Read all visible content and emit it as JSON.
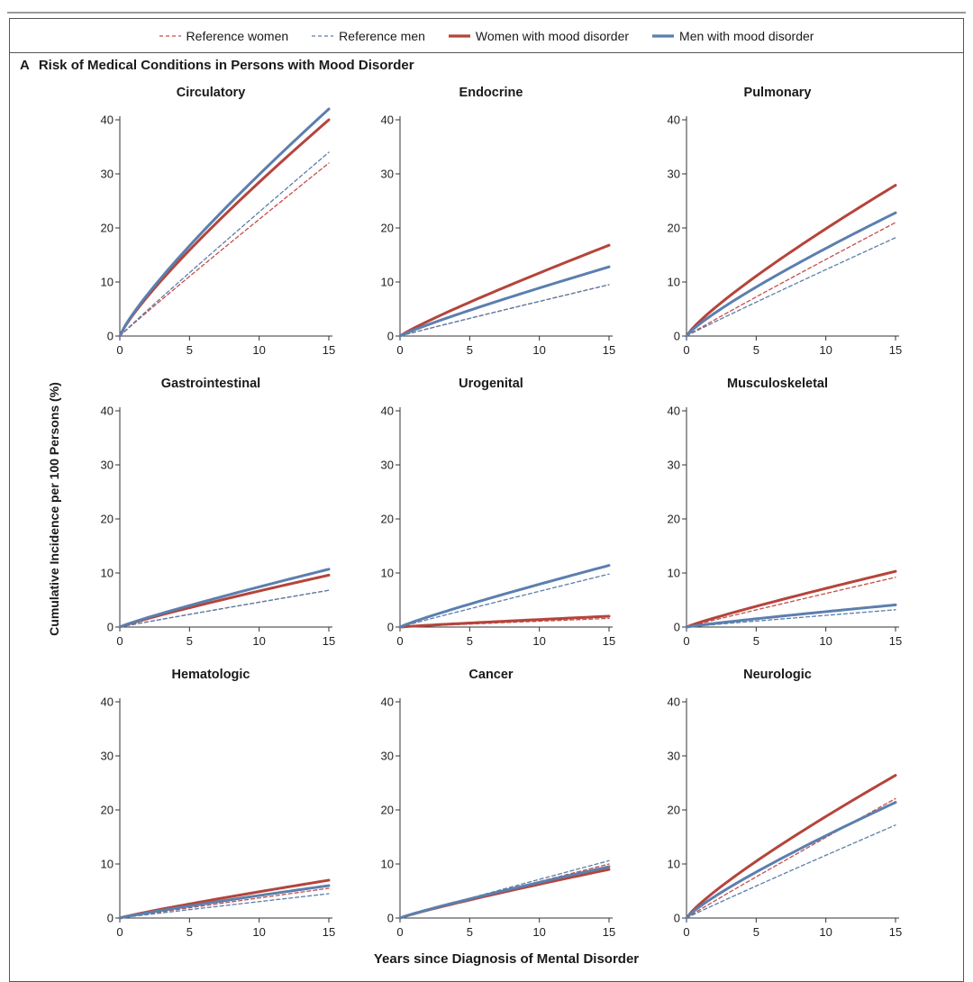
{
  "legend": {
    "entries": [
      {
        "label": "Reference women",
        "color": "#c0504d",
        "style": "dashed"
      },
      {
        "label": "Reference men",
        "color": "#5b7ea8",
        "style": "dashed"
      },
      {
        "label": "Women with mood disorder",
        "color": "#b5443b",
        "style": "solid"
      },
      {
        "label": "Men with mood disorder",
        "color": "#5b7fae",
        "style": "solid"
      }
    ]
  },
  "panel": {
    "letter": "A",
    "title": "Risk of Medical Conditions in Persons with Mood Disorder"
  },
  "axes": {
    "ylabel": "Cumulative Incidence per 100 Persons (%)",
    "xlabel": "Years since Diagnosis of Mental Disorder"
  },
  "chart_data": {
    "type": "line",
    "x": [
      0,
      15
    ],
    "xlim": [
      0,
      15
    ],
    "ylim": [
      0,
      40
    ],
    "xticks": [
      0,
      5,
      10,
      15
    ],
    "yticks": [
      0,
      10,
      20,
      30,
      40
    ],
    "grid": false,
    "series_names": [
      "Reference women",
      "Reference men",
      "Women with mood disorder",
      "Men with mood disorder"
    ],
    "panels": [
      {
        "title": "Circulatory",
        "end_values": {
          "ref_women": 32,
          "ref_men": 34,
          "women": 40,
          "men": 42
        }
      },
      {
        "title": "Endocrine",
        "end_values": {
          "ref_women": 9.5,
          "ref_men": 9.5,
          "women": 16.8,
          "men": 12.8
        }
      },
      {
        "title": "Pulmonary",
        "end_values": {
          "ref_women": 21,
          "ref_men": 18.2,
          "women": 27.9,
          "men": 22.8
        }
      },
      {
        "title": "Gastrointestinal",
        "end_values": {
          "ref_women": 6.8,
          "ref_men": 6.8,
          "women": 9.6,
          "men": 10.7
        }
      },
      {
        "title": "Urogenital",
        "end_values": {
          "ref_women": 1.6,
          "ref_men": 9.8,
          "women": 2.0,
          "men": 11.4
        }
      },
      {
        "title": "Musculoskeletal",
        "end_values": {
          "ref_women": 9.2,
          "ref_men": 3.2,
          "women": 10.3,
          "men": 4.1
        }
      },
      {
        "title": "Hematologic",
        "end_values": {
          "ref_women": 5.5,
          "ref_men": 4.5,
          "women": 7.0,
          "men": 6.0
        }
      },
      {
        "title": "Cancer",
        "end_values": {
          "ref_women": 10.0,
          "ref_men": 10.6,
          "women": 9.0,
          "men": 9.5
        }
      },
      {
        "title": "Neurologic",
        "end_values": {
          "ref_women": 22.1,
          "ref_men": 17.2,
          "women": 26.4,
          "men": 21.4
        }
      }
    ]
  }
}
